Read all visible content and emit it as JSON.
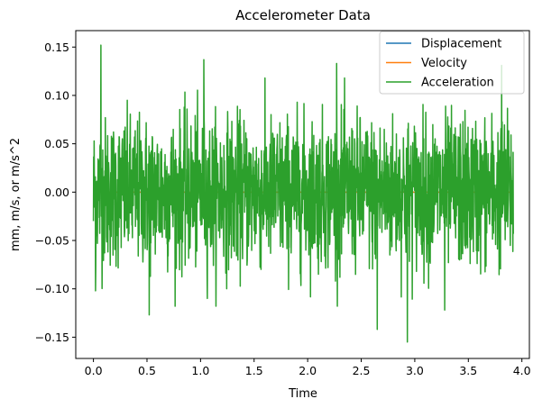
{
  "chart_data": {
    "type": "line",
    "title": "Accelerometer Data",
    "xlabel": "Time",
    "ylabel": "mm, m/s, or m/s^2",
    "xlim": [
      -0.165,
      4.07
    ],
    "ylim": [
      -0.172,
      0.167
    ],
    "x_ticks": [
      0.0,
      0.5,
      1.0,
      1.5,
      2.0,
      2.5,
      3.0,
      3.5,
      4.0
    ],
    "x_tick_labels": [
      "0.0",
      "0.5",
      "1.0",
      "1.5",
      "2.0",
      "2.5",
      "3.0",
      "3.5",
      "4.0"
    ],
    "y_ticks": [
      -0.15,
      -0.1,
      -0.05,
      0.0,
      0.05,
      0.1,
      0.15
    ],
    "y_tick_labels": [
      "−0.15",
      "−0.10",
      "−0.05",
      "0.00",
      "0.05",
      "0.10",
      "0.15"
    ],
    "legend_position": "top-right",
    "grid": false,
    "series": [
      {
        "name": "Displacement",
        "color": "#1f77b4",
        "x": [
          0.0,
          1.0,
          2.0,
          3.0,
          3.92
        ],
        "values": [
          0.0,
          0.0,
          0.0,
          0.0,
          0.0
        ]
      },
      {
        "name": "Velocity",
        "color": "#ff7f0e",
        "x": [
          0.0,
          1.0,
          2.0,
          3.0,
          3.92
        ],
        "values": [
          0.0,
          0.0,
          0.0,
          0.0,
          0.0
        ]
      },
      {
        "name": "Acceleration",
        "color": "#2ca02c",
        "x_range": [
          0.0,
          3.92
        ],
        "noise_std": 0.038,
        "peaks": [
          {
            "x": 0.0,
            "y": 0.123
          },
          {
            "x": 0.07,
            "y": 0.152
          },
          {
            "x": 1.03,
            "y": 0.137
          },
          {
            "x": 0.02,
            "y": -0.102
          },
          {
            "x": 0.52,
            "y": -0.127
          },
          {
            "x": 2.27,
            "y": 0.133
          },
          {
            "x": 2.65,
            "y": -0.142
          },
          {
            "x": 2.93,
            "y": -0.155
          },
          {
            "x": 3.81,
            "y": 0.131
          },
          {
            "x": 3.28,
            "y": -0.122
          }
        ]
      }
    ]
  }
}
